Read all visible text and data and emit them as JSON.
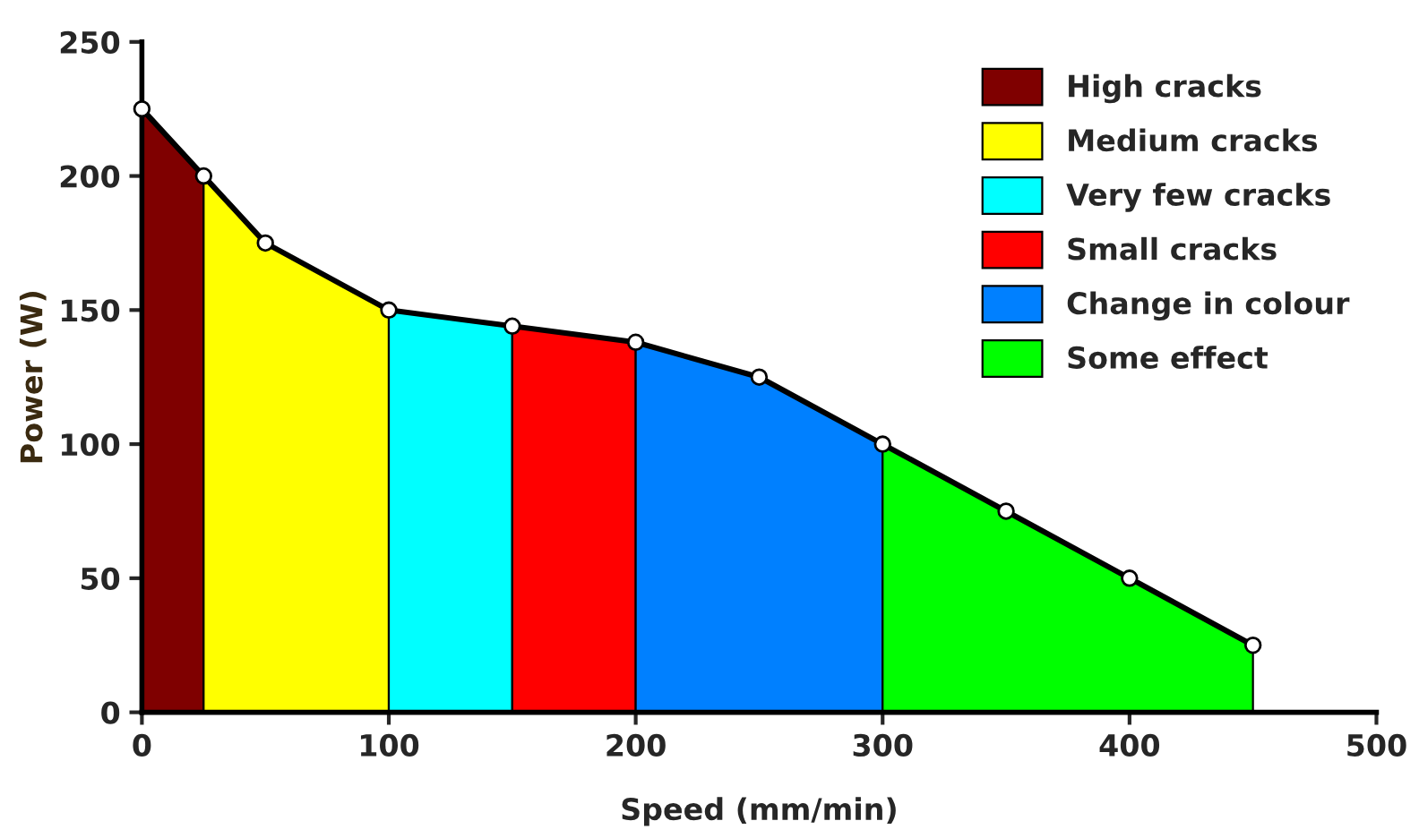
{
  "chart_data": {
    "type": "area",
    "xlabel": "Speed (mm/min)",
    "ylabel": "Power (W)",
    "xlim": [
      0,
      500
    ],
    "xticks": [
      0,
      100,
      200,
      300,
      400,
      500
    ],
    "ylim": [
      0,
      250
    ],
    "yticks": [
      0,
      50,
      100,
      150,
      200,
      250
    ],
    "grid": false,
    "legend": "top right",
    "series": [
      {
        "name": "High cracks",
        "color": "#7f0000",
        "x": [
          0,
          25
        ],
        "values": [
          225,
          200
        ]
      },
      {
        "name": "Medium cracks",
        "color": "#ffff00",
        "x": [
          25,
          50,
          100
        ],
        "values": [
          200,
          175,
          150
        ]
      },
      {
        "name": "Very few cracks",
        "color": "#00ffff",
        "x": [
          100,
          150
        ],
        "values": [
          150,
          144
        ]
      },
      {
        "name": "Small cracks",
        "color": "#ff0000",
        "x": [
          150,
          200
        ],
        "values": [
          144,
          138
        ]
      },
      {
        "name": "Change in colour",
        "color": "#0080ff",
        "x": [
          200,
          250,
          300
        ],
        "values": [
          138,
          125,
          100
        ]
      },
      {
        "name": "Some effect",
        "color": "#00ff00",
        "x": [
          300,
          350,
          400,
          450
        ],
        "values": [
          100,
          75,
          50,
          25
        ]
      },
      {
        "type": "line",
        "color": "#000000",
        "marker": "circle",
        "x": [
          0,
          25,
          50,
          100,
          150,
          200,
          250,
          300,
          350,
          400,
          450
        ],
        "values": [
          225,
          200,
          175,
          150,
          144,
          138,
          125,
          100,
          75,
          50,
          25
        ]
      }
    ]
  }
}
